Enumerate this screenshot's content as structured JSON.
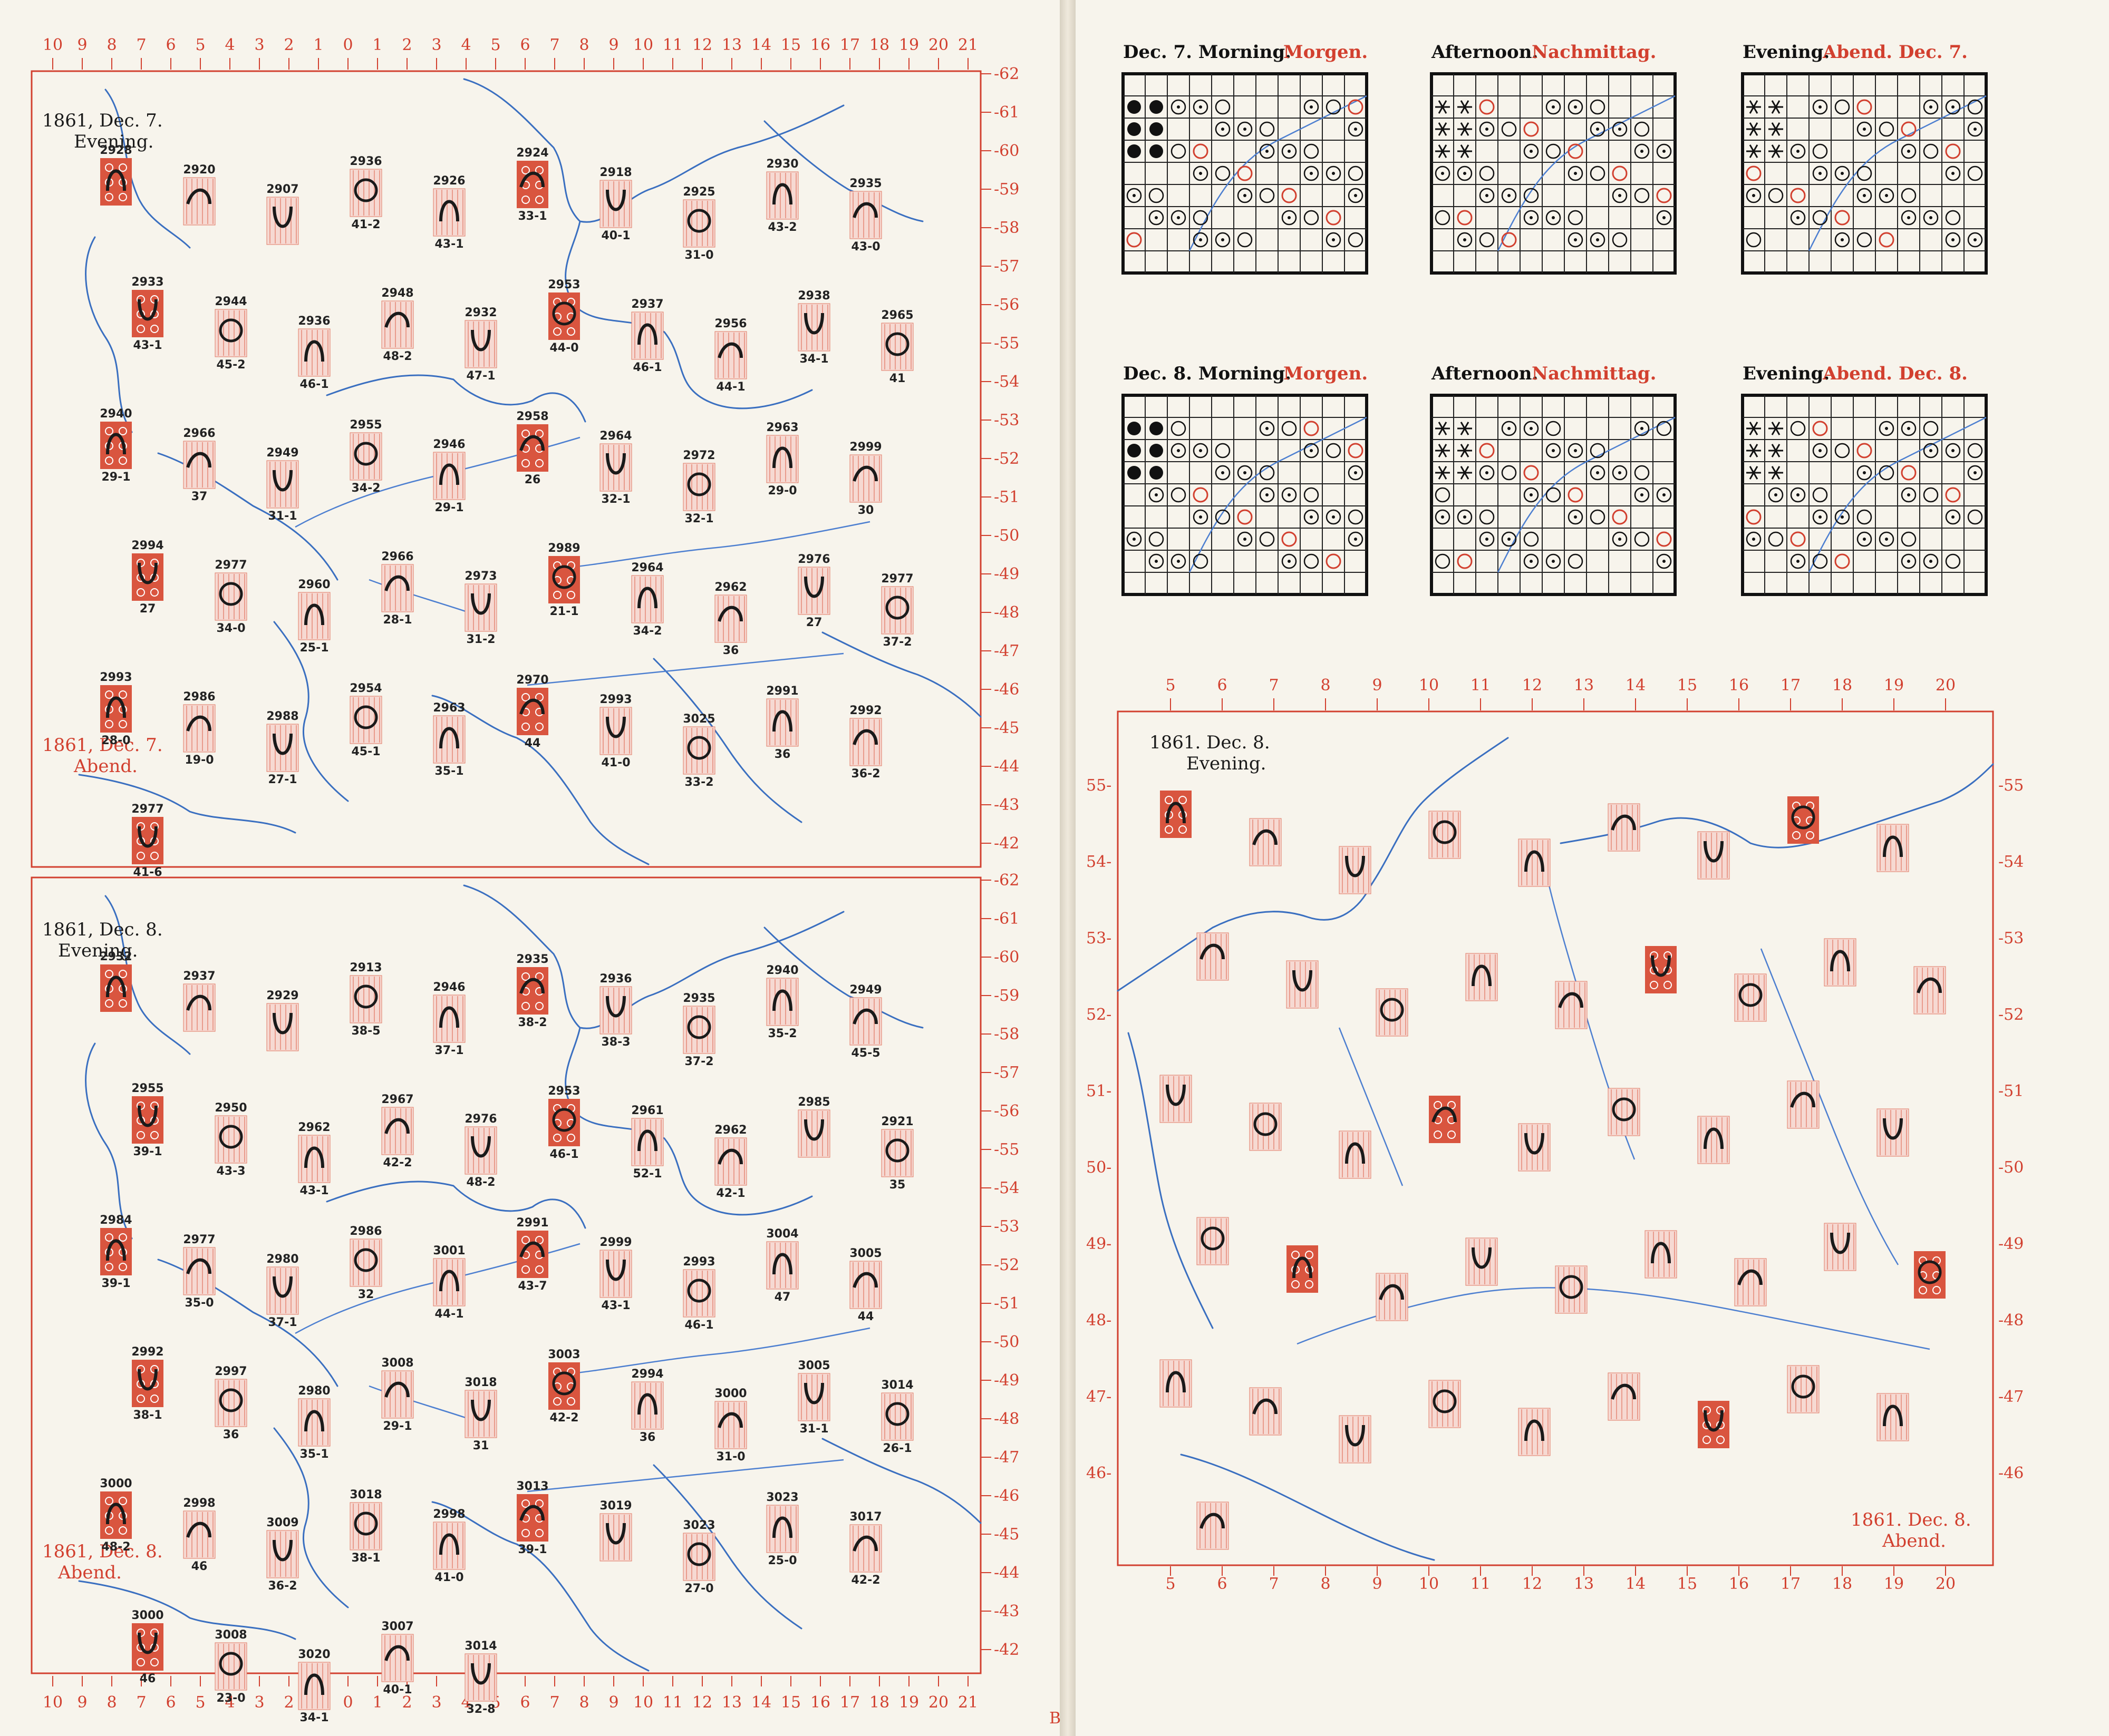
{
  "left_page": {
    "top_map": {
      "title_black": "1861, Dec. 7.",
      "title_black_2": "Evening.",
      "title_red": "1861, Dec. 7.",
      "title_red_2": "Abend.",
      "stations": [
        {
          "num": "2928",
          "val": ""
        },
        {
          "num": "2920",
          "val": ""
        },
        {
          "num": "2907",
          "val": ""
        },
        {
          "num": "2936",
          "val": "41-2"
        },
        {
          "num": "2926",
          "val": "43-1"
        },
        {
          "num": "2924",
          "val": "33-1"
        },
        {
          "num": "2918",
          "val": "40-1"
        },
        {
          "num": "2925",
          "val": "31-0"
        },
        {
          "num": "2930",
          "val": "43-2"
        },
        {
          "num": "2935",
          "val": "43-0"
        },
        {
          "num": "2933",
          "val": "43-1"
        },
        {
          "num": "2944",
          "val": "45-2"
        },
        {
          "num": "2936",
          "val": "46-1"
        },
        {
          "num": "2948",
          "val": "48-2"
        },
        {
          "num": "2932",
          "val": "47-1"
        },
        {
          "num": "2953",
          "val": "44-0"
        },
        {
          "num": "2937",
          "val": "46-1"
        },
        {
          "num": "2956",
          "val": "44-1"
        },
        {
          "num": "2938",
          "val": "34-1"
        },
        {
          "num": "2965",
          "val": "41"
        },
        {
          "num": "2940",
          "val": "29-1"
        },
        {
          "num": "2966",
          "val": "37"
        },
        {
          "num": "2949",
          "val": "31-1"
        },
        {
          "num": "2955",
          "val": "34-2"
        },
        {
          "num": "2946",
          "val": "29-1"
        },
        {
          "num": "2958",
          "val": "26"
        },
        {
          "num": "2964",
          "val": "32-1"
        },
        {
          "num": "2972",
          "val": "32-1"
        },
        {
          "num": "2963",
          "val": "29-0"
        },
        {
          "num": "2999",
          "val": "30"
        },
        {
          "num": "2994",
          "val": "27"
        },
        {
          "num": "2977",
          "val": "34-0"
        },
        {
          "num": "2960",
          "val": "25-1"
        },
        {
          "num": "2966",
          "val": "28-1"
        },
        {
          "num": "2973",
          "val": "31-2"
        },
        {
          "num": "2989",
          "val": "21-1"
        },
        {
          "num": "2964",
          "val": "34-2"
        },
        {
          "num": "2962",
          "val": "36"
        },
        {
          "num": "2976",
          "val": "27"
        },
        {
          "num": "2977",
          "val": "37-2"
        },
        {
          "num": "2993",
          "val": "28-0"
        },
        {
          "num": "2986",
          "val": "19-0"
        },
        {
          "num": "2988",
          "val": "27-1"
        },
        {
          "num": "2954",
          "val": "45-1"
        },
        {
          "num": "2963",
          "val": "35-1"
        },
        {
          "num": "2970",
          "val": "44"
        },
        {
          "num": "2993",
          "val": "41-0"
        },
        {
          "num": "3025",
          "val": "33-2"
        },
        {
          "num": "2991",
          "val": "36"
        },
        {
          "num": "2992",
          "val": "36-2"
        },
        {
          "num": "2977",
          "val": "41-6"
        }
      ]
    },
    "bottom_map": {
      "title_black": "1861, Dec. 8.",
      "title_black_2": "Evening.",
      "title_red": "1861, Dec. 8.",
      "title_red_2": "Abend.",
      "stations": [
        {
          "num": "2932",
          "val": ""
        },
        {
          "num": "2937",
          "val": ""
        },
        {
          "num": "2929",
          "val": ""
        },
        {
          "num": "2913",
          "val": "38-5"
        },
        {
          "num": "2946",
          "val": "37-1"
        },
        {
          "num": "2935",
          "val": "38-2"
        },
        {
          "num": "2936",
          "val": "38-3"
        },
        {
          "num": "2935",
          "val": "37-2"
        },
        {
          "num": "2940",
          "val": "35-2"
        },
        {
          "num": "2949",
          "val": "45-5"
        },
        {
          "num": "2955",
          "val": "39-1"
        },
        {
          "num": "2950",
          "val": "43-3"
        },
        {
          "num": "2962",
          "val": "43-1"
        },
        {
          "num": "2967",
          "val": "42-2"
        },
        {
          "num": "2976",
          "val": "48-2"
        },
        {
          "num": "2953",
          "val": "46-1"
        },
        {
          "num": "2961",
          "val": "52-1"
        },
        {
          "num": "2962",
          "val": "42-1"
        },
        {
          "num": "2985",
          "val": ""
        },
        {
          "num": "2921",
          "val": "35"
        },
        {
          "num": "2984",
          "val": "39-1"
        },
        {
          "num": "2977",
          "val": "35-0"
        },
        {
          "num": "2980",
          "val": "37-1"
        },
        {
          "num": "2986",
          "val": "32"
        },
        {
          "num": "3001",
          "val": "44-1"
        },
        {
          "num": "2991",
          "val": "43-7"
        },
        {
          "num": "2999",
          "val": "43-1"
        },
        {
          "num": "2993",
          "val": "46-1"
        },
        {
          "num": "3004",
          "val": "47"
        },
        {
          "num": "3005",
          "val": "44"
        },
        {
          "num": "2992",
          "val": "38-1"
        },
        {
          "num": "2997",
          "val": "36"
        },
        {
          "num": "2980",
          "val": "35-1"
        },
        {
          "num": "3008",
          "val": "29-1"
        },
        {
          "num": "3018",
          "val": "31"
        },
        {
          "num": "3003",
          "val": "42-2"
        },
        {
          "num": "2994",
          "val": "36"
        },
        {
          "num": "3000",
          "val": "31-0"
        },
        {
          "num": "3005",
          "val": "31-1"
        },
        {
          "num": "3014",
          "val": "26-1"
        },
        {
          "num": "3000",
          "val": "48-2"
        },
        {
          "num": "2998",
          "val": "46"
        },
        {
          "num": "3009",
          "val": "36-2"
        },
        {
          "num": "3018",
          "val": "38-1"
        },
        {
          "num": "2998",
          "val": "41-0"
        },
        {
          "num": "3013",
          "val": "39-1"
        },
        {
          "num": "3019",
          "val": ""
        },
        {
          "num": "3023",
          "val": "27-0"
        },
        {
          "num": "3023",
          "val": "25-0"
        },
        {
          "num": "3017",
          "val": "42-2"
        },
        {
          "num": "3000",
          "val": "46"
        },
        {
          "num": "3008",
          "val": "23-0"
        },
        {
          "num": "3020",
          "val": "34-1"
        },
        {
          "num": "3007",
          "val": "40-1"
        },
        {
          "num": "3014",
          "val": "32-8"
        }
      ]
    },
    "x_ticks": [
      "10",
      "9",
      "8",
      "7",
      "6",
      "5",
      "4",
      "3",
      "2",
      "1",
      "0",
      "1",
      "2",
      "3",
      "4",
      "5",
      "6",
      "7",
      "8",
      "9",
      "10",
      "11",
      "12",
      "13",
      "14",
      "15",
      "16",
      "17",
      "18",
      "19",
      "20",
      "21"
    ],
    "y_ticks_top": [
      "-62",
      "-61",
      "-60",
      "-59",
      "-58",
      "-57",
      "-56",
      "-55",
      "-54",
      "-53",
      "-52",
      "-51",
      "-50",
      "-49",
      "-48",
      "-47",
      "-46",
      "-45",
      "-44",
      "-43",
      "-42"
    ],
    "y_ticks_bottom": [
      "-62",
      "-61",
      "-60",
      "-59",
      "-58",
      "-57",
      "-56",
      "-55",
      "-54",
      "-53",
      "-52",
      "-51",
      "-50",
      "-49",
      "-48",
      "-47",
      "-46",
      "-45",
      "-44",
      "-43",
      "-42"
    ],
    "corner_mark": "B"
  },
  "right_page": {
    "grid_panels": [
      {
        "title": "Dec. 7. Morning.",
        "title_red": "Morgen."
      },
      {
        "title": "Afternoon.",
        "title_red": "Nachmittag."
      },
      {
        "title": "Evening.",
        "title_red": "Abend. Dec. 7."
      },
      {
        "title": "Dec. 8. Morning.",
        "title_red": "Morgen."
      },
      {
        "title": "Afternoon.",
        "title_red": "Nachmittag."
      },
      {
        "title": "Evening.",
        "title_red": "Abend. Dec. 8."
      }
    ],
    "detail_map": {
      "title_black": "1861. Dec. 8.",
      "title_black_2": "Evening.",
      "title_red": "1861. Dec. 8.",
      "title_red_2": "Abend.",
      "x_ticks": [
        "5",
        "6",
        "7",
        "8",
        "9",
        "10",
        "11",
        "12",
        "13",
        "14",
        "15",
        "16",
        "17",
        "18",
        "19",
        "20"
      ],
      "y_ticks_left": [
        "55-",
        "54-",
        "53-",
        "52-",
        "51-",
        "50-",
        "49-",
        "48-",
        "47-",
        "46-"
      ],
      "y_ticks_right": [
        "-55",
        "-54",
        "-53",
        "-52",
        "-51",
        "-50",
        "-49",
        "-48",
        "-47",
        "-46"
      ]
    }
  },
  "colors": {
    "red": "#d2402f",
    "blue": "#3a6fc0",
    "ink": "#1a1a1a",
    "paper": "#f7f4ec"
  }
}
